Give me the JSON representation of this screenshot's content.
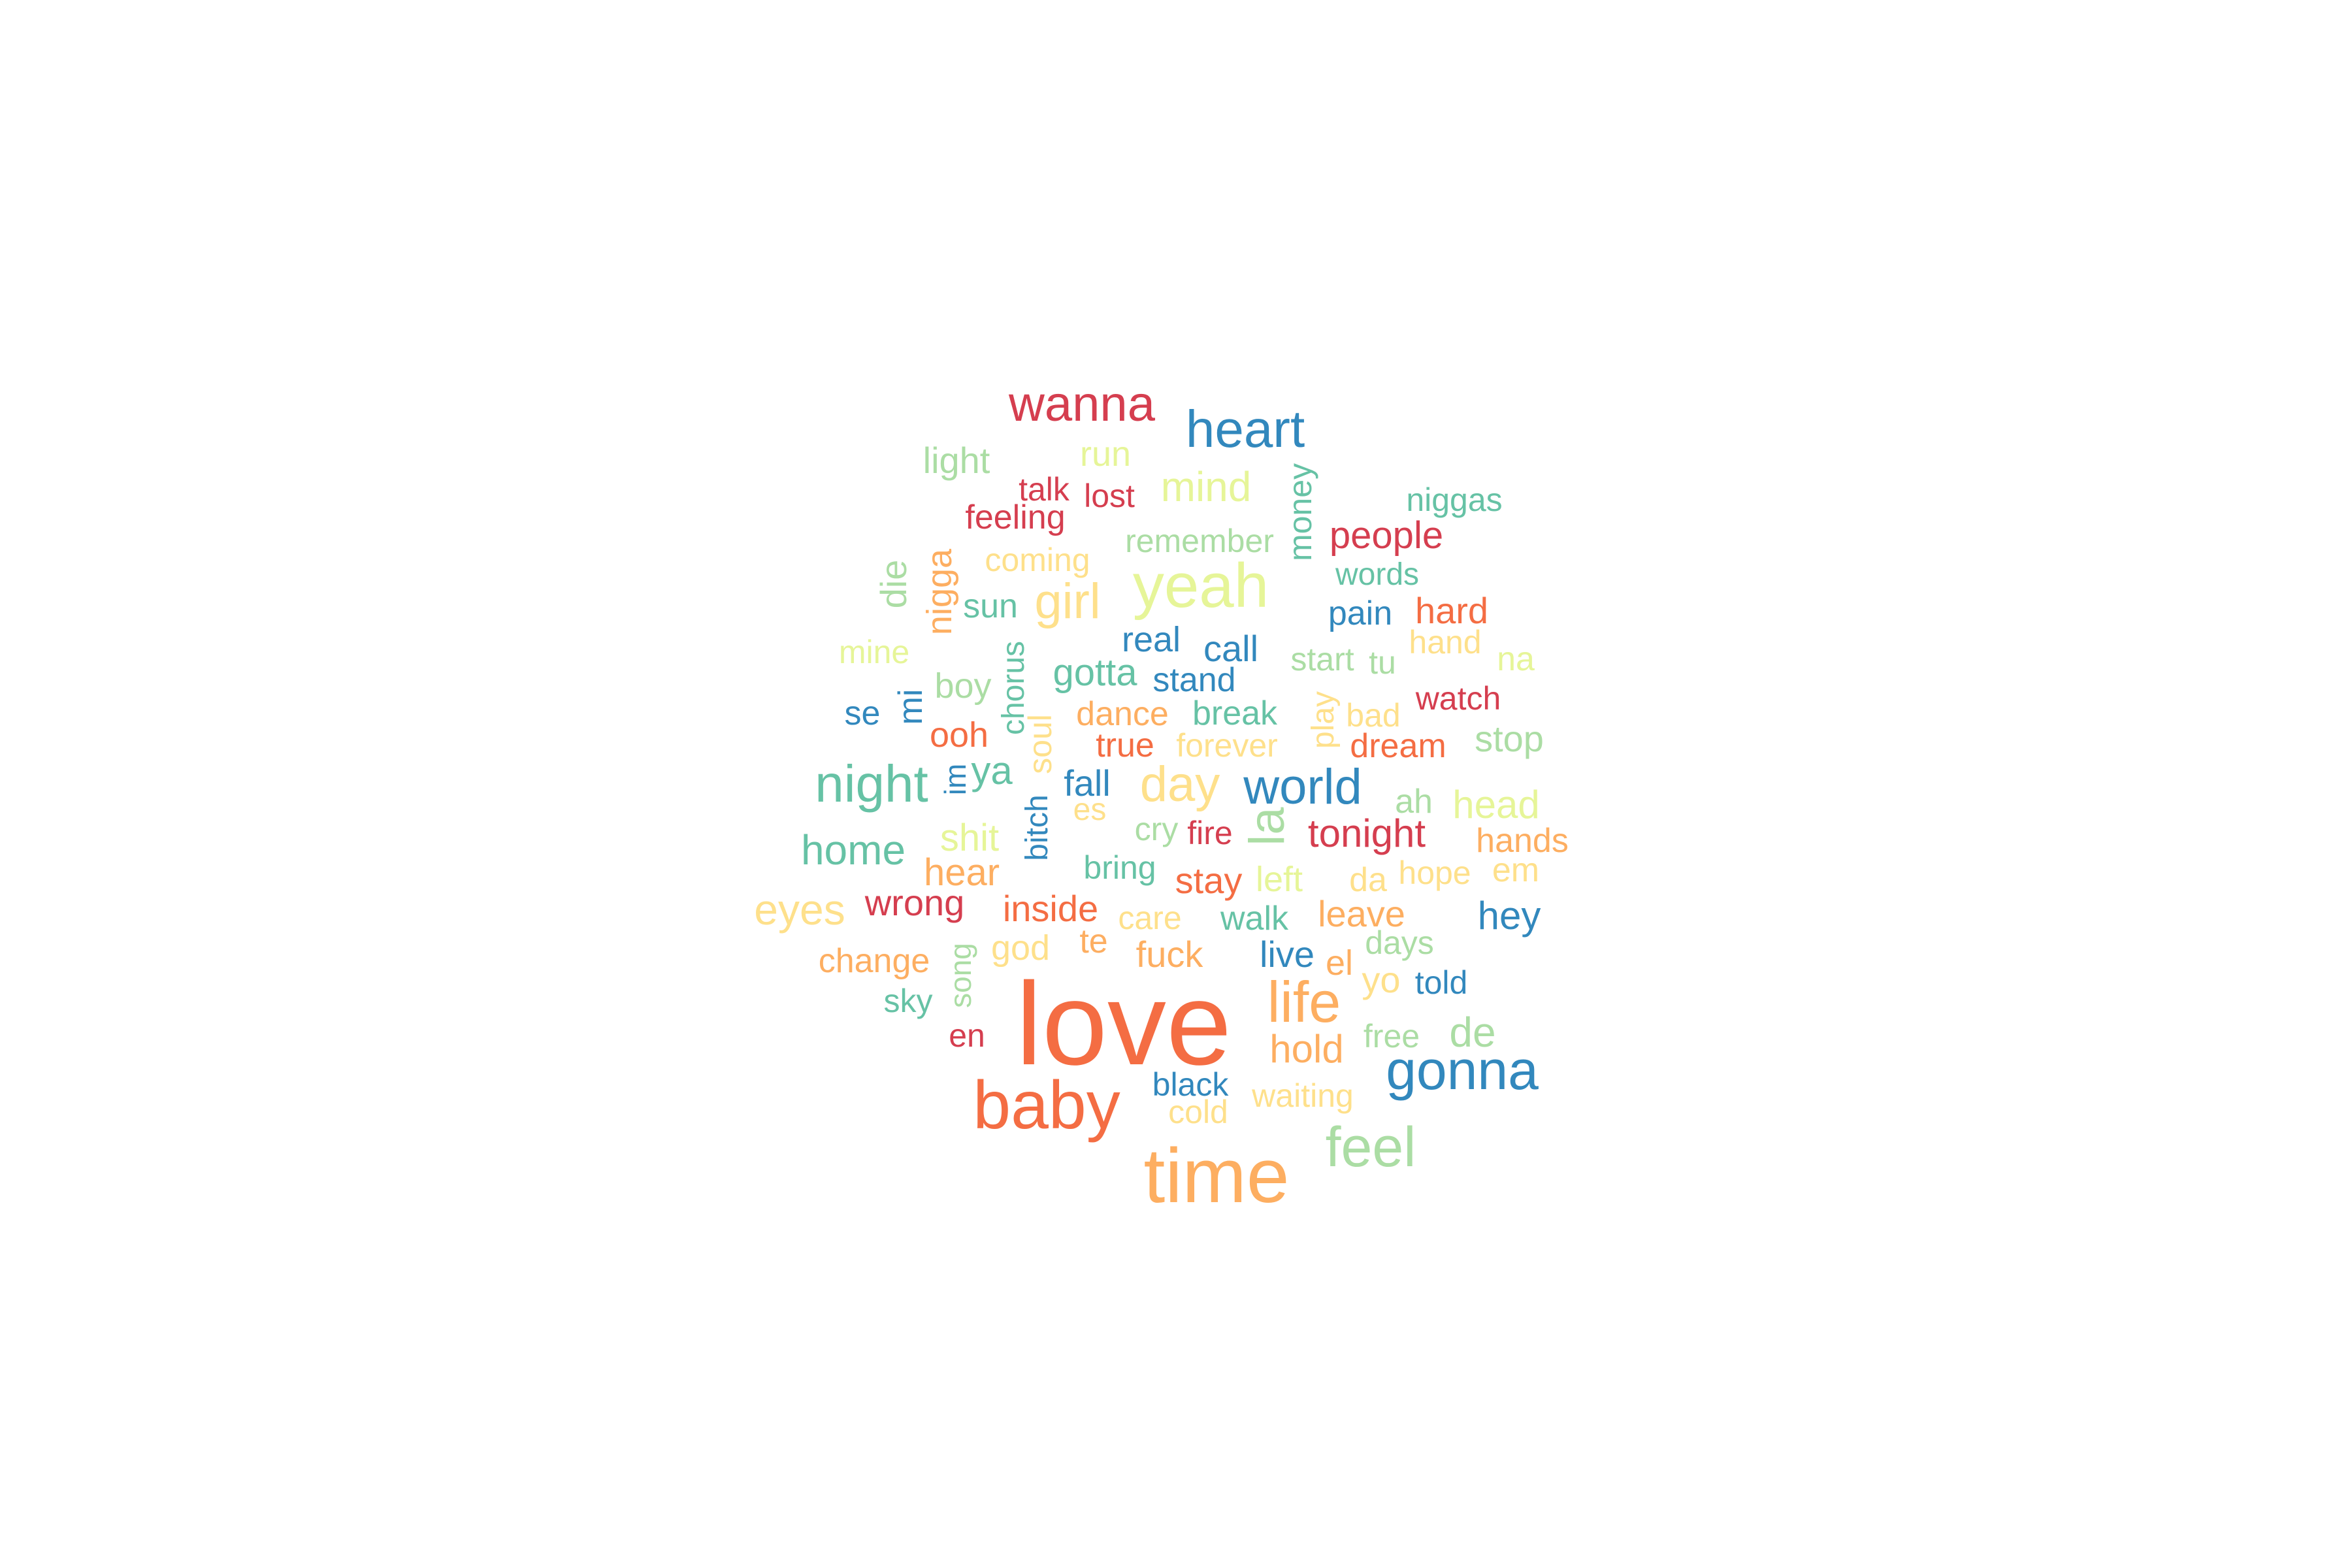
{
  "palette": {
    "red": "#d53e4f",
    "orange": "#f46d43",
    "lightorange": "#fdae61",
    "yellow": "#fee08b",
    "lightgreen": "#e6f598",
    "green": "#abdda4",
    "teal": "#66c2a5",
    "blue": "#3288bd"
  },
  "words": [
    {
      "text": "love",
      "color": "orange",
      "size": 180
    },
    {
      "text": "time",
      "color": "lightorange",
      "size": 118
    },
    {
      "text": "baby",
      "color": "orange",
      "size": 104
    },
    {
      "text": "yeah",
      "color": "lightgreen",
      "size": 96
    },
    {
      "text": "gonna",
      "color": "blue",
      "size": 84
    },
    {
      "text": "heart",
      "color": "blue",
      "size": 80
    },
    {
      "text": "feel",
      "color": "green",
      "size": 86
    },
    {
      "text": "wanna",
      "color": "red",
      "size": 76
    },
    {
      "text": "life",
      "color": "lightorange",
      "size": 88
    },
    {
      "text": "night",
      "color": "teal",
      "size": 80
    },
    {
      "text": "world",
      "color": "blue",
      "size": 76
    },
    {
      "text": "day",
      "color": "yellow",
      "size": 76
    },
    {
      "text": "girl",
      "color": "yellow",
      "size": 76
    },
    {
      "text": "la",
      "color": "green",
      "size": 76
    },
    {
      "text": "eyes",
      "color": "yellow",
      "size": 66
    },
    {
      "text": "home",
      "color": "teal",
      "size": 64
    },
    {
      "text": "mind",
      "color": "lightgreen",
      "size": 64
    },
    {
      "text": "tonight",
      "color": "red",
      "size": 60
    },
    {
      "text": "people",
      "color": "red",
      "size": 58
    },
    {
      "text": "hey",
      "color": "blue",
      "size": 60
    },
    {
      "text": "de",
      "color": "green",
      "size": 64
    },
    {
      "text": "hold",
      "color": "lightorange",
      "size": 60
    },
    {
      "text": "ya",
      "color": "teal",
      "size": 60
    },
    {
      "text": "gotta",
      "color": "teal",
      "size": 58
    },
    {
      "text": "money",
      "color": "teal",
      "size": 50
    },
    {
      "text": "light",
      "color": "green",
      "size": 56
    },
    {
      "text": "run",
      "color": "lightgreen",
      "size": 54
    },
    {
      "text": "niggas",
      "color": "teal",
      "size": 50
    },
    {
      "text": "talk",
      "color": "red",
      "size": 50
    },
    {
      "text": "lost",
      "color": "red",
      "size": 50
    },
    {
      "text": "feeling",
      "color": "red",
      "size": 52
    },
    {
      "text": "remember",
      "color": "green",
      "size": 50
    },
    {
      "text": "coming",
      "color": "yellow",
      "size": 50
    },
    {
      "text": "words",
      "color": "teal",
      "size": 48
    },
    {
      "text": "die",
      "color": "green",
      "size": 56
    },
    {
      "text": "nigga",
      "color": "lightorange",
      "size": 54
    },
    {
      "text": "sun",
      "color": "teal",
      "size": 52
    },
    {
      "text": "pain",
      "color": "blue",
      "size": 52
    },
    {
      "text": "hard",
      "color": "orange",
      "size": 56
    },
    {
      "text": "real",
      "color": "blue",
      "size": 54
    },
    {
      "text": "call",
      "color": "blue",
      "size": 56
    },
    {
      "text": "mine",
      "color": "lightgreen",
      "size": 50
    },
    {
      "text": "chorus",
      "color": "teal",
      "size": 48
    },
    {
      "text": "start",
      "color": "green",
      "size": 50
    },
    {
      "text": "tu",
      "color": "green",
      "size": 50
    },
    {
      "text": "hand",
      "color": "yellow",
      "size": 50
    },
    {
      "text": "na",
      "color": "lightgreen",
      "size": 52
    },
    {
      "text": "stand",
      "color": "blue",
      "size": 52
    },
    {
      "text": "boy",
      "color": "green",
      "size": 54
    },
    {
      "text": "mi",
      "color": "blue",
      "size": 52
    },
    {
      "text": "se",
      "color": "blue",
      "size": 52
    },
    {
      "text": "break",
      "color": "teal",
      "size": 52
    },
    {
      "text": "dance",
      "color": "lightorange",
      "size": 52
    },
    {
      "text": "play",
      "color": "yellow",
      "size": 48
    },
    {
      "text": "bad",
      "color": "yellow",
      "size": 50
    },
    {
      "text": "watch",
      "color": "red",
      "size": 50
    },
    {
      "text": "ooh",
      "color": "orange",
      "size": 54
    },
    {
      "text": "soul",
      "color": "yellow",
      "size": 50
    },
    {
      "text": "true",
      "color": "orange",
      "size": 52
    },
    {
      "text": "forever",
      "color": "yellow",
      "size": 50
    },
    {
      "text": "dream",
      "color": "orange",
      "size": 52
    },
    {
      "text": "stop",
      "color": "green",
      "size": 56
    },
    {
      "text": "im",
      "color": "blue",
      "size": 46
    },
    {
      "text": "fall",
      "color": "blue",
      "size": 56
    },
    {
      "text": "ah",
      "color": "green",
      "size": 52
    },
    {
      "text": "head",
      "color": "lightgreen",
      "size": 60
    },
    {
      "text": "bitch",
      "color": "blue",
      "size": 48
    },
    {
      "text": "es",
      "color": "yellow",
      "size": 48
    },
    {
      "text": "cry",
      "color": "green",
      "size": 50
    },
    {
      "text": "fire",
      "color": "red",
      "size": 50
    },
    {
      "text": "hands",
      "color": "lightorange",
      "size": 52
    },
    {
      "text": "shit",
      "color": "lightgreen",
      "size": 58
    },
    {
      "text": "bring",
      "color": "teal",
      "size": 50
    },
    {
      "text": "stay",
      "color": "orange",
      "size": 56
    },
    {
      "text": "left",
      "color": "lightgreen",
      "size": 54
    },
    {
      "text": "da",
      "color": "yellow",
      "size": 52
    },
    {
      "text": "hope",
      "color": "yellow",
      "size": 50
    },
    {
      "text": "em",
      "color": "yellow",
      "size": 52
    },
    {
      "text": "hear",
      "color": "lightorange",
      "size": 58
    },
    {
      "text": "wrong",
      "color": "red",
      "size": 56
    },
    {
      "text": "inside",
      "color": "orange",
      "size": 56
    },
    {
      "text": "care",
      "color": "yellow",
      "size": 50
    },
    {
      "text": "walk",
      "color": "teal",
      "size": 52
    },
    {
      "text": "leave",
      "color": "lightorange",
      "size": 56
    },
    {
      "text": "change",
      "color": "lightorange",
      "size": 52
    },
    {
      "text": "song",
      "color": "green",
      "size": 46
    },
    {
      "text": "god",
      "color": "yellow",
      "size": 54
    },
    {
      "text": "te",
      "color": "lightorange",
      "size": 52
    },
    {
      "text": "fuck",
      "color": "lightorange",
      "size": 56
    },
    {
      "text": "live",
      "color": "blue",
      "size": 56
    },
    {
      "text": "el",
      "color": "lightorange",
      "size": 54
    },
    {
      "text": "days",
      "color": "green",
      "size": 50
    },
    {
      "text": "yo",
      "color": "yellow",
      "size": 56
    },
    {
      "text": "told",
      "color": "blue",
      "size": 50
    },
    {
      "text": "sky",
      "color": "teal",
      "size": 50
    },
    {
      "text": "en",
      "color": "red",
      "size": 50
    },
    {
      "text": "free",
      "color": "green",
      "size": 50
    },
    {
      "text": "black",
      "color": "blue",
      "size": 50
    },
    {
      "text": "waiting",
      "color": "yellow",
      "size": 50
    },
    {
      "text": "cold",
      "color": "yellow",
      "size": 50
    }
  ]
}
